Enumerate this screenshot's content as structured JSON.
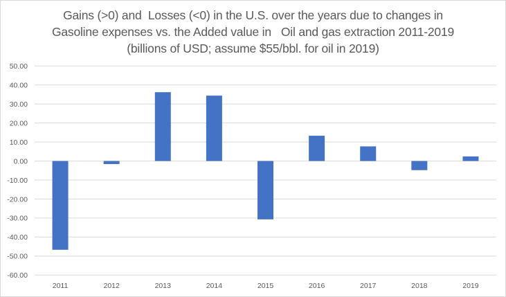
{
  "chart_data": {
    "type": "bar",
    "title_lines": [
      "Gains (>0) and  Losses (<0) in the U.S. over the years due to changes in",
      "Gasoline expenses vs. the Added value in   Oil and gas extraction 2011-2019",
      "(billions of USD; assume $55/bbl. for oil in 2019)"
    ],
    "categories": [
      "2011",
      "2012",
      "2013",
      "2014",
      "2015",
      "2016",
      "2017",
      "2018",
      "2019"
    ],
    "values": [
      -46.7,
      -1.6,
      36.2,
      34.4,
      -30.7,
      13.3,
      7.7,
      -4.8,
      2.4
    ],
    "xlabel": "",
    "ylabel": "",
    "ylim": [
      -60,
      50
    ],
    "yticks": [
      50,
      40,
      30,
      20,
      10,
      0,
      -10,
      -20,
      -30,
      -40,
      -50,
      -60
    ],
    "ytick_labels": [
      "50.00",
      "40.00",
      "30.00",
      "20.00",
      "10.00",
      "0.00",
      "-10.00",
      "-20.00",
      "-30.00",
      "-40.00",
      "-50.00",
      "-60.00"
    ],
    "grid": true,
    "legend": "none",
    "bar_color": "#4472c4",
    "grid_color": "#d9d9d9"
  }
}
